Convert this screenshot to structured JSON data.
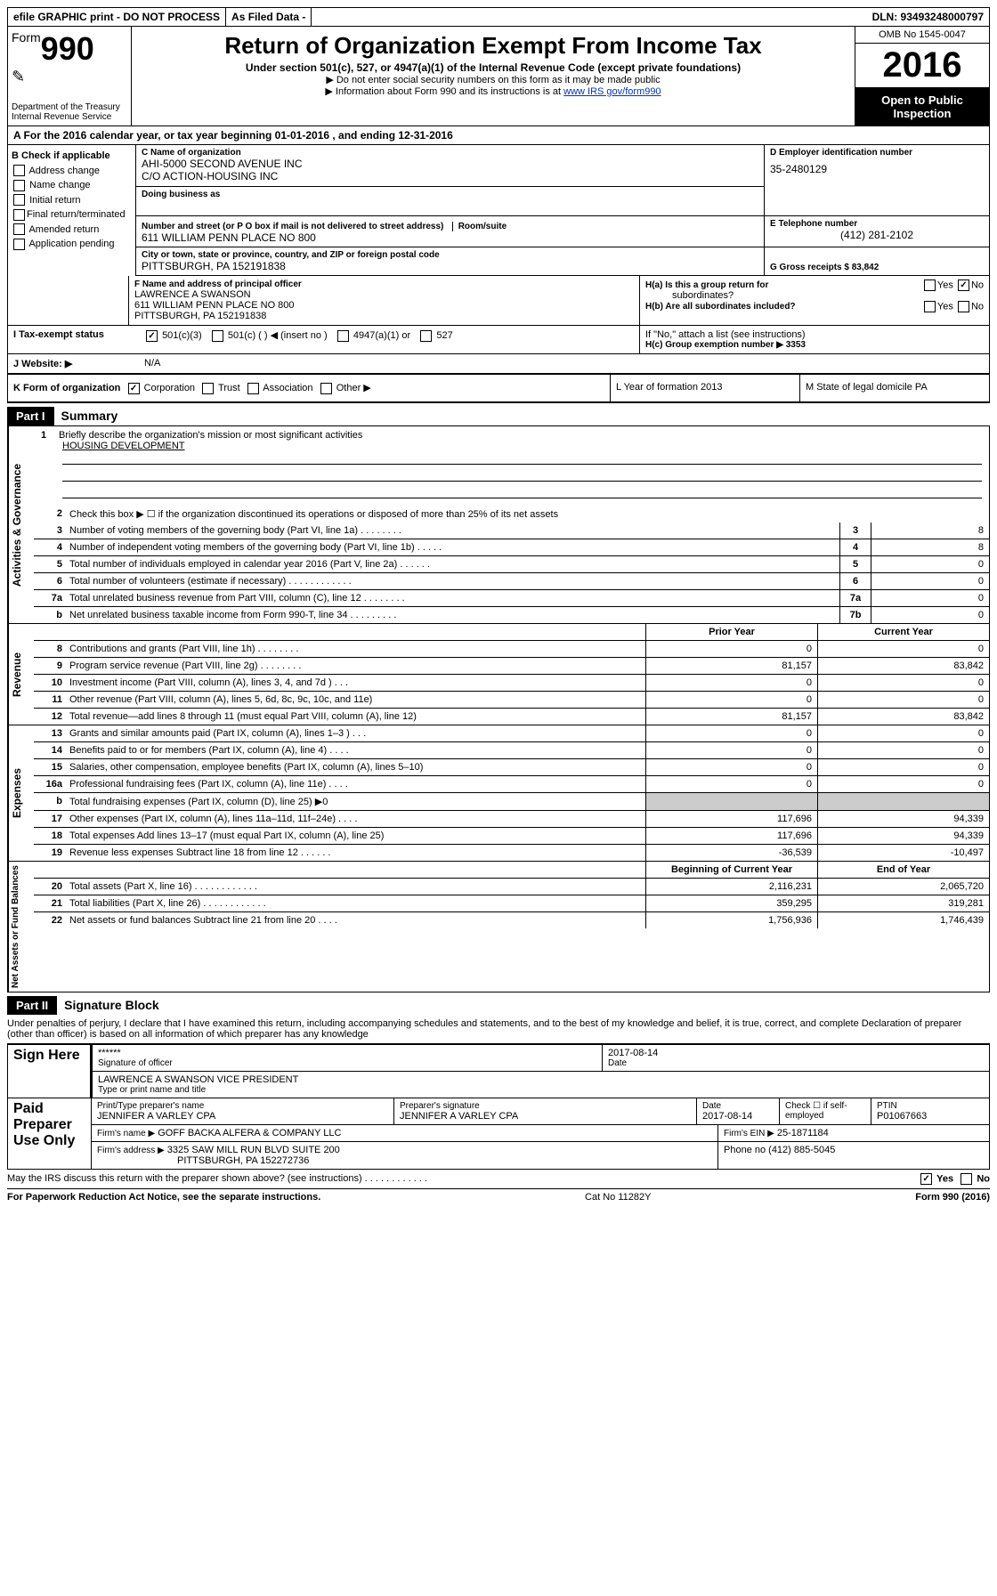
{
  "top": {
    "efile": "efile GRAPHIC print - DO NOT PROCESS",
    "asfiled": "As Filed Data -",
    "dln": "DLN: 93493248000797"
  },
  "header": {
    "form_prefix": "Form",
    "form_num": "990",
    "dept1": "Department of the Treasury",
    "dept2": "Internal Revenue Service",
    "title": "Return of Organization Exempt From Income Tax",
    "sub": "Under section 501(c), 527, or 4947(a)(1) of the Internal Revenue Code (except private foundations)",
    "note1": "▶ Do not enter social security numbers on this form as it may be made public",
    "note2_pre": "▶ Information about Form 990 and its instructions is at ",
    "note2_link": "www IRS gov/form990",
    "omb": "OMB No 1545-0047",
    "year": "2016",
    "open1": "Open to Public",
    "open2": "Inspection"
  },
  "rowA": "A  For the 2016 calendar year, or tax year beginning 01-01-2016   , and ending 12-31-2016",
  "sectionB": {
    "title": "B Check if applicable",
    "items": [
      "Address change",
      "Name change",
      "Initial return",
      "Final return/terminated",
      "Amended return",
      "Application pending"
    ]
  },
  "sectionC": {
    "label": "C Name of organization",
    "line1": "AHI-5000 SECOND AVENUE INC",
    "line2": "C/O ACTION-HOUSING INC",
    "dba_label": "Doing business as",
    "addr_label": "Number and street (or P O  box if mail is not delivered to street address)",
    "room_label": "Room/suite",
    "addr": "611 WILLIAM PENN PLACE NO 800",
    "city_label": "City or town, state or province, country, and ZIP or foreign postal code",
    "city": "PITTSBURGH, PA  152191838"
  },
  "sectionD": {
    "label": "D Employer identification number",
    "val": "35-2480129"
  },
  "sectionE": {
    "label": "E Telephone number",
    "val": "(412) 281-2102"
  },
  "sectionG": {
    "label": "G Gross receipts $ 83,842"
  },
  "sectionF": {
    "label": "F  Name and address of principal officer",
    "name": "LAWRENCE A SWANSON",
    "addr1": "611 WILLIAM PENN PLACE NO 800",
    "addr2": "PITTSBURGH, PA  152191838"
  },
  "sectionH": {
    "ha": "H(a)  Is this a group return for",
    "ha2": "subordinates?",
    "hb": "H(b)  Are all subordinates included?",
    "hb_note": "If \"No,\" attach a list  (see instructions)",
    "hc": "H(c)  Group exemption number ▶  3353",
    "yes": "Yes",
    "no": "No"
  },
  "rowI": {
    "label": "I   Tax-exempt status",
    "opt1": "501(c)(3)",
    "opt2": "501(c) (   ) ◀ (insert no )",
    "opt3": "4947(a)(1) or",
    "opt4": "527"
  },
  "rowJ": {
    "label": "J   Website: ▶",
    "val": "N/A"
  },
  "rowK": {
    "label": "K Form of organization",
    "opt1": "Corporation",
    "opt2": "Trust",
    "opt3": "Association",
    "opt4": "Other ▶",
    "L": "L Year of formation  2013",
    "M": "M State of legal domicile  PA"
  },
  "part1": {
    "label": "Part I",
    "title": "Summary"
  },
  "mission": {
    "num": "1",
    "label": "Briefly describe the organization's mission or most significant activities",
    "text": "HOUSING DEVELOPMENT"
  },
  "line2": "Check this box ▶ ☐  if the organization discontinued its operations or disposed of more than 25% of its net assets",
  "ag": {
    "label": "Activities & Governance",
    "rows": [
      {
        "n": "3",
        "d": "Number of voting members of the governing body (Part VI, line 1a)   .    .    .    .    .    .    .    .",
        "bn": "3",
        "v": "8"
      },
      {
        "n": "4",
        "d": "Number of independent voting members of the governing body (Part VI, line 1b)   .    .    .    .    .",
        "bn": "4",
        "v": "8"
      },
      {
        "n": "5",
        "d": "Total number of individuals employed in calendar year 2016 (Part V, line 2a)   .    .    .    .    .    .",
        "bn": "5",
        "v": "0"
      },
      {
        "n": "6",
        "d": "Total number of volunteers (estimate if necessary)   .    .    .    .    .    .    .    .    .    .    .    .",
        "bn": "6",
        "v": "0"
      },
      {
        "n": "7a",
        "d": "Total unrelated business revenue from Part VIII, column (C), line 12   .    .    .    .    .    .    .    .",
        "bn": "7a",
        "v": "0"
      },
      {
        "n": "b",
        "d": "Net unrelated business taxable income from Form 990-T, line 34   .    .    .    .    .    .    .    .    .",
        "bn": "7b",
        "v": "0"
      }
    ]
  },
  "rev": {
    "label": "Revenue",
    "head_prior": "Prior Year",
    "head_curr": "Current Year",
    "rows": [
      {
        "n": "8",
        "d": "Contributions and grants (Part VIII, line 1h)   .    .    .    .    .    .    .    .",
        "p": "0",
        "c": "0"
      },
      {
        "n": "9",
        "d": "Program service revenue (Part VIII, line 2g)   .    .    .    .    .    .    .    .",
        "p": "81,157",
        "c": "83,842"
      },
      {
        "n": "10",
        "d": "Investment income (Part VIII, column (A), lines 3, 4, and 7d )   .    .    .",
        "p": "0",
        "c": "0"
      },
      {
        "n": "11",
        "d": "Other revenue (Part VIII, column (A), lines 5, 6d, 8c, 9c, 10c, and 11e)",
        "p": "0",
        "c": "0"
      },
      {
        "n": "12",
        "d": "Total revenue—add lines 8 through 11 (must equal Part VIII, column (A), line 12)",
        "p": "81,157",
        "c": "83,842"
      }
    ]
  },
  "exp": {
    "label": "Expenses",
    "rows": [
      {
        "n": "13",
        "d": "Grants and similar amounts paid (Part IX, column (A), lines 1–3 )   .    .    .",
        "p": "0",
        "c": "0"
      },
      {
        "n": "14",
        "d": "Benefits paid to or for members (Part IX, column (A), line 4)   .    .    .    .",
        "p": "0",
        "c": "0"
      },
      {
        "n": "15",
        "d": "Salaries, other compensation, employee benefits (Part IX, column (A), lines 5–10)",
        "p": "0",
        "c": "0"
      },
      {
        "n": "16a",
        "d": "Professional fundraising fees (Part IX, column (A), line 11e)   .    .    .    .",
        "p": "0",
        "c": "0"
      },
      {
        "n": "b",
        "d": "Total fundraising expenses (Part IX, column (D), line 25) ▶0",
        "p": "",
        "c": "",
        "shaded": true
      },
      {
        "n": "17",
        "d": "Other expenses (Part IX, column (A), lines 11a–11d, 11f–24e)   .    .    .    .",
        "p": "117,696",
        "c": "94,339"
      },
      {
        "n": "18",
        "d": "Total expenses  Add lines 13–17 (must equal Part IX, column (A), line 25)",
        "p": "117,696",
        "c": "94,339"
      },
      {
        "n": "19",
        "d": "Revenue less expenses  Subtract line 18 from line 12   .    .    .    .    .    .",
        "p": "-36,539",
        "c": "-10,497"
      }
    ]
  },
  "na": {
    "label": "Net Assets or Fund Balances",
    "head_begin": "Beginning of Current Year",
    "head_end": "End of Year",
    "rows": [
      {
        "n": "20",
        "d": "Total assets (Part X, line 16)   .    .    .    .    .    .    .    .    .    .    .    .",
        "p": "2,116,231",
        "c": "2,065,720"
      },
      {
        "n": "21",
        "d": "Total liabilities (Part X, line 26)   .    .    .    .    .    .    .    .    .    .    .    .",
        "p": "359,295",
        "c": "319,281"
      },
      {
        "n": "22",
        "d": "Net assets or fund balances  Subtract line 21 from line 20   .    .    .    .",
        "p": "1,756,936",
        "c": "1,746,439"
      }
    ]
  },
  "part2": {
    "label": "Part II",
    "title": "Signature Block"
  },
  "sig_note": "Under penalties of perjury, I declare that I have examined this return, including accompanying schedules and statements, and to the best of my knowledge and belief, it is true, correct, and complete  Declaration of preparer (other than officer) is based on all information of which preparer has any knowledge",
  "sign": {
    "label": "Sign Here",
    "stars": "******",
    "sig_label": "Signature of officer",
    "date": "2017-08-14",
    "date_label": "Date",
    "name": "LAWRENCE A SWANSON  VICE PRESIDENT",
    "type_label": "Type or print name and title"
  },
  "paid": {
    "label": "Paid Preparer Use Only",
    "prep_name_label": "Print/Type preparer's name",
    "prep_name": "JENNIFER A VARLEY CPA",
    "prep_sig_label": "Preparer's signature",
    "prep_sig": "JENNIFER A VARLEY CPA",
    "date_label": "Date",
    "date": "2017-08-14",
    "check_label": "Check ☐ if self-employed",
    "ptin_label": "PTIN",
    "ptin": "P01067663",
    "firm_label": "Firm's name     ▶",
    "firm": "GOFF BACKA ALFERA & COMPANY LLC",
    "ein_label": "Firm's EIN ▶",
    "ein": "25-1871184",
    "addr_label": "Firm's address ▶",
    "addr1": "3325 SAW MILL RUN BLVD SUITE 200",
    "addr2": "PITTSBURGH, PA  152272736",
    "phone_label": "Phone no  (412) 885-5045"
  },
  "footer": {
    "discuss": "May the IRS discuss this return with the preparer shown above? (see instructions)   .    .    .    .    .    .    .    .    .    .    .    .",
    "yes": "Yes",
    "no": "No",
    "paperwork": "For Paperwork Reduction Act Notice, see the separate instructions.",
    "cat": "Cat  No  11282Y",
    "formno": "Form 990 (2016)"
  }
}
